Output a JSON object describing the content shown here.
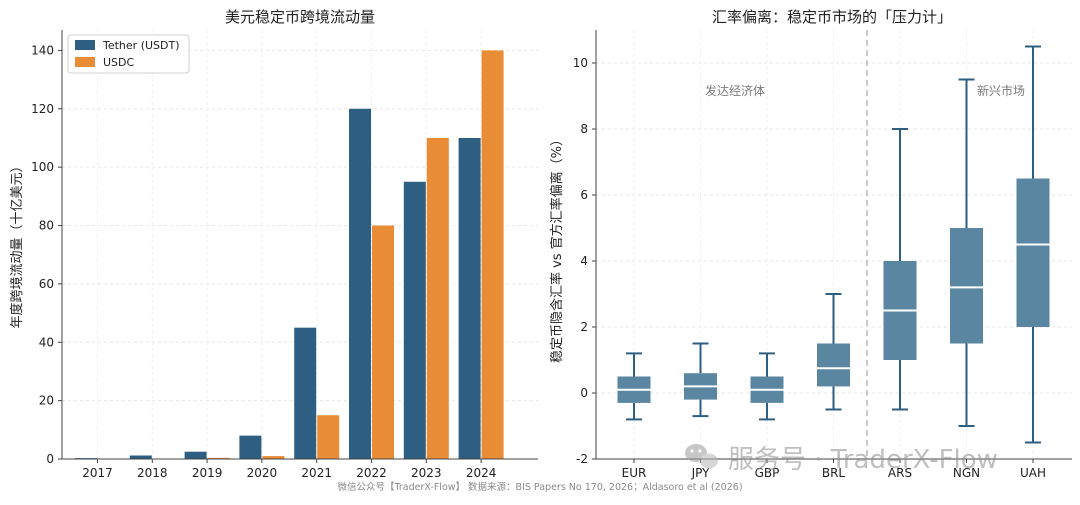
{
  "chart_data": [
    {
      "type": "bar",
      "title": "美元稳定币跨境流动量",
      "xlabel": "",
      "ylabel": "年度跨境流动量（十亿美元）",
      "categories": [
        "2017",
        "2018",
        "2019",
        "2020",
        "2021",
        "2022",
        "2023",
        "2024"
      ],
      "series": [
        {
          "name": "Tether (USDT)",
          "color": "#2e5f82",
          "values": [
            0.3,
            1.2,
            2.5,
            8,
            45,
            120,
            95,
            110
          ]
        },
        {
          "name": "USDC",
          "color": "#e98c36",
          "values": [
            0,
            0,
            0.4,
            1,
            15,
            80,
            110,
            140
          ]
        }
      ],
      "ylim": [
        0,
        147
      ],
      "yticks": [
        0,
        20,
        40,
        60,
        80,
        100,
        120,
        140
      ],
      "grid": true,
      "legend": "top-left"
    },
    {
      "type": "box",
      "title": "汇率偏离：稳定币市场的「压力计」",
      "xlabel": "",
      "ylabel": "稳定币隐含汇率 vs 官方汇率偏离（%）",
      "categories": [
        "EUR",
        "JPY",
        "GBP",
        "BRL",
        "ARS",
        "NGN",
        "UAH"
      ],
      "boxes": [
        {
          "label": "EUR",
          "whisker_low": -0.8,
          "q1": -0.3,
          "median": 0.1,
          "q3": 0.5,
          "whisker_high": 1.2
        },
        {
          "label": "JPY",
          "whisker_low": -0.7,
          "q1": -0.2,
          "median": 0.2,
          "q3": 0.6,
          "whisker_high": 1.5
        },
        {
          "label": "GBP",
          "whisker_low": -0.8,
          "q1": -0.3,
          "median": 0.1,
          "q3": 0.5,
          "whisker_high": 1.2
        },
        {
          "label": "BRL",
          "whisker_low": -0.5,
          "q1": 0.2,
          "median": 0.75,
          "q3": 1.5,
          "whisker_high": 3.0
        },
        {
          "label": "ARS",
          "whisker_low": -0.5,
          "q1": 1.0,
          "median": 2.5,
          "q3": 4.0,
          "whisker_high": 8.0
        },
        {
          "label": "NGN",
          "whisker_low": -1.0,
          "q1": 1.5,
          "median": 3.2,
          "q3": 5.0,
          "whisker_high": 9.5
        },
        {
          "label": "UAH",
          "whisker_low": -1.5,
          "q1": 2.0,
          "median": 4.5,
          "q3": 6.5,
          "whisker_high": 10.5
        }
      ],
      "ylim": [
        -2,
        11
      ],
      "yticks": [
        -2,
        0,
        2,
        4,
        6,
        8,
        10
      ],
      "group_labels": [
        "发达经济体",
        "新兴市场"
      ],
      "color": "#5b86a2",
      "whisker_color": "#2e5f82",
      "grid": true
    }
  ],
  "footer": {
    "note": "微信公众号【TraderX-Flow】  数据来源：BIS Papers No 170, 2026；Aldasoro et al (2026)",
    "watermark": "服务号 · TraderX-Flow"
  }
}
